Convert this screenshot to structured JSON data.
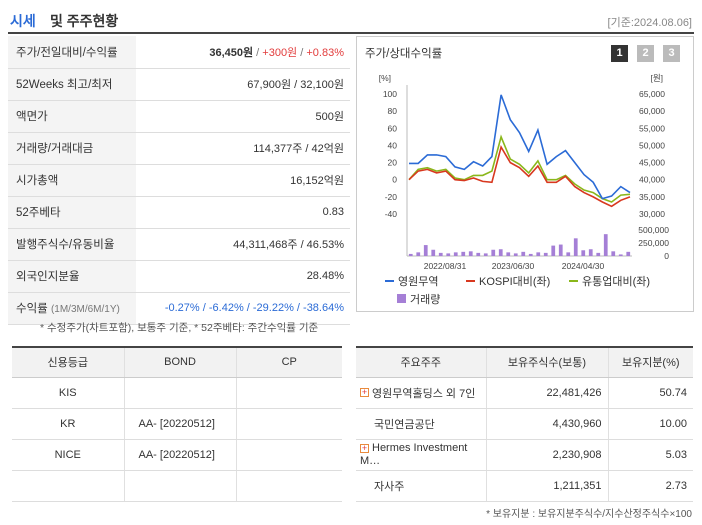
{
  "header": {
    "title_a": "시세",
    "title_b": "및 주주현황",
    "date": "[기준:2024.08.06]"
  },
  "quote": {
    "price_label": "주가/전일대비/수익률",
    "price": "36,450원",
    "change": "+300원",
    "change_pct": "+0.83%",
    "w52_label": "52Weeks 최고/최저",
    "w52_value": "67,900원 / 32,100원",
    "par_label": "액면가",
    "par_value": "500원",
    "volume_label": "거래량/거래대금",
    "volume_value": "114,377주 / 42억원",
    "mcap_label": "시가총액",
    "mcap_value": "16,152억원",
    "beta_label": "52주베타",
    "beta_value": "0.83",
    "shares_label": "발행주식수/유동비율",
    "shares_value": "44,311,468주 / 46.53%",
    "foreign_label": "외국인지분율",
    "foreign_value": "28.48%",
    "return_label": "수익률",
    "return_periods": "(1M/3M/6M/1Y)",
    "returns": "-0.27% / -6.42% / -29.22% / -38.64%"
  },
  "note1": "* 수정주가(차트포함), 보통주 기준, * 52주베타: 주간수익률 기준",
  "date2": "[기준: 2024.08.06]",
  "chart_panel": {
    "title": "주가/상대수익률",
    "pages": [
      "1",
      "2",
      "3"
    ],
    "colors": {
      "stock": "#2b6bd6",
      "kospi": "#d8381f",
      "industry": "#8ab71b",
      "volume": "#a57fd6"
    }
  },
  "chart_data": {
    "type": "line",
    "left_axis_unit": "[%]",
    "right_axis_unit": "[원]",
    "left_ticks": [
      "100",
      "80",
      "60",
      "40",
      "20",
      "0",
      "-20",
      "-40"
    ],
    "right_ticks": [
      "65,000",
      "60,000",
      "55,000",
      "50,000",
      "45,000",
      "40,000",
      "35,000",
      "30,000"
    ],
    "volume_ticks": [
      "500,000",
      "250,000",
      "0"
    ],
    "x_ticks": [
      "2022/08/31",
      "2023/06/30",
      "2024/04/30"
    ],
    "ylim_pct": [
      -40,
      100
    ],
    "ylim_vol": [
      0,
      500000
    ],
    "series": [
      {
        "name": "영원무역",
        "values": [
          19,
          19,
          29,
          29,
          27,
          15,
          12,
          21,
          16,
          27,
          99,
          70,
          55,
          33,
          58,
          18,
          27,
          34,
          20,
          6,
          -3,
          -22,
          -19,
          -8,
          -15
        ]
      },
      {
        "name": "KOSPI대비(좌)",
        "values": [
          0,
          10,
          12,
          8,
          10,
          0,
          -1,
          2,
          -2,
          -3,
          38,
          20,
          14,
          4,
          16,
          -3,
          -3,
          4,
          -8,
          -15,
          -20,
          -26,
          -31,
          -24,
          -20
        ]
      },
      {
        "name": "유통업대비(좌)",
        "values": [
          0,
          12,
          14,
          10,
          12,
          2,
          0,
          5,
          5,
          10,
          50,
          24,
          18,
          8,
          22,
          0,
          0,
          5,
          -5,
          -12,
          -15,
          -22,
          -26,
          -18,
          -17
        ]
      }
    ],
    "volume": {
      "name": "거래량",
      "values": [
        40000,
        70000,
        210000,
        120000,
        60000,
        50000,
        70000,
        80000,
        90000,
        60000,
        50000,
        120000,
        130000,
        70000,
        50000,
        80000,
        40000,
        70000,
        60000,
        200000,
        220000,
        70000,
        340000,
        110000,
        130000,
        60000,
        420000,
        90000,
        30000,
        80000
      ]
    }
  },
  "credit": {
    "headers": [
      "신용등급",
      "BOND",
      "CP"
    ],
    "rows": [
      [
        "KIS",
        "",
        ""
      ],
      [
        "KR",
        "AA-  [20220512]",
        ""
      ],
      [
        "NICE",
        "AA-  [20220512]",
        ""
      ],
      [
        "",
        "",
        ""
      ]
    ]
  },
  "shareholders": {
    "headers": [
      "주요주주",
      "보유주식수(보통)",
      "보유지분(%)"
    ],
    "rows": [
      {
        "name": "영원무역홀딩스 외 7인",
        "shares": "22,481,426",
        "pct": "50.74",
        "expand": "+"
      },
      {
        "name": "국민연금공단",
        "shares": "4,430,960",
        "pct": "10.00",
        "expand": ""
      },
      {
        "name": "Hermes Investment M…",
        "shares": "2,230,908",
        "pct": "5.03",
        "expand": "+"
      },
      {
        "name": "자사주",
        "shares": "1,211,351",
        "pct": "2.73",
        "expand": ""
      }
    ]
  },
  "note2": "* 보유지분 : 보유지분주식수/지수산정주식수×100"
}
